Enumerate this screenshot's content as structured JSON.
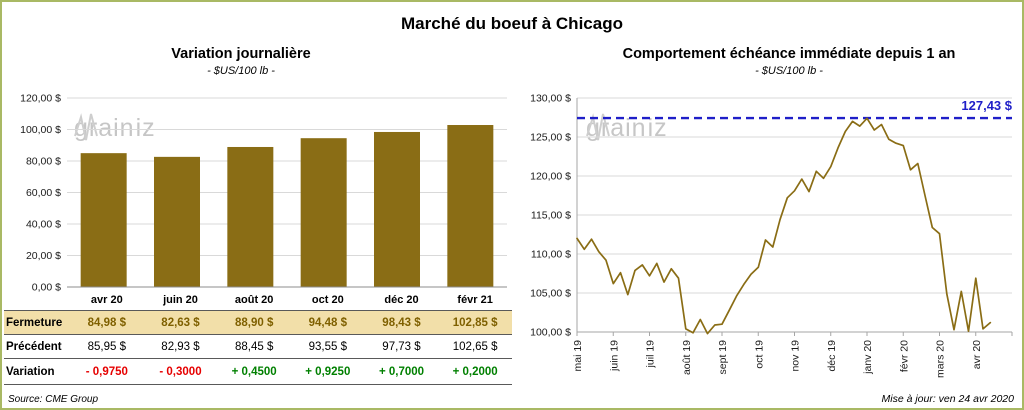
{
  "page": {
    "title": "Marché du boeuf à Chicago",
    "source": "Source: CME Group",
    "updated": "Mise à jour: ven 24 avr 2020",
    "watermark": {
      "pre": "grain",
      "post": "iz"
    }
  },
  "colors": {
    "bar": "#8a6d15",
    "line": "#8a6d15",
    "reference": "#1f1fc8",
    "negative": "#e60000",
    "positive": "#008000",
    "grid": "#d9d9d9",
    "axis": "#a6a6a6"
  },
  "chart_data": [
    {
      "type": "bar",
      "title": "Variation  journalière",
      "subtitle": "- $US/100 lb -",
      "categories": [
        "avr 20",
        "juin 20",
        "août 20",
        "oct 20",
        "déc 20",
        "févr 21"
      ],
      "values": [
        84.98,
        82.63,
        88.9,
        94.48,
        98.43,
        102.85
      ],
      "ylim": [
        0,
        120
      ],
      "ytick_step": 20,
      "ytick_labels": [
        "0,00 $",
        "20,00 $",
        "40,00 $",
        "60,00 $",
        "80,00 $",
        "100,00 $",
        "120,00 $"
      ],
      "table": {
        "rows": [
          {
            "key": "fermeture",
            "label": "Fermeture",
            "values": [
              "84,98  $",
              "82,63  $",
              "88,90  $",
              "94,48  $",
              "98,43  $",
              "102,85  $"
            ]
          },
          {
            "key": "precedent",
            "label": "Précédent",
            "values": [
              "85,95  $",
              "82,93  $",
              "88,45  $",
              "93,55  $",
              "97,73  $",
              "102,65  $"
            ]
          },
          {
            "key": "variation",
            "label": "Variation",
            "values": [
              "- 0,9750",
              "- 0,3000",
              "+ 0,4500",
              "+ 0,9250",
              "+ 0,7000",
              "+ 0,2000"
            ],
            "colors": [
              "neg",
              "neg",
              "pos",
              "pos",
              "pos",
              "pos"
            ]
          }
        ]
      }
    },
    {
      "type": "line",
      "title": "Comportement  échéance  immédiate  depuis 1 an",
      "subtitle": "- $US/100 lb -",
      "x_labels": [
        "mai 19",
        "juin 19",
        "juil 19",
        "août 19",
        "sept 19",
        "oct 19",
        "nov 19",
        "déc 19",
        "janv 20",
        "févr 20",
        "mars 20",
        "avr 20"
      ],
      "values": [
        112.0,
        110.6,
        111.9,
        110.3,
        109.2,
        106.2,
        107.6,
        104.8,
        107.9,
        108.6,
        107.2,
        108.8,
        106.4,
        108.1,
        106.9,
        100.4,
        99.9,
        101.6,
        99.8,
        100.9,
        101.0,
        102.8,
        104.6,
        106.1,
        107.4,
        108.3,
        111.8,
        110.9,
        114.4,
        117.2,
        118.1,
        119.6,
        118.0,
        120.6,
        119.7,
        121.2,
        123.6,
        125.7,
        127.0,
        126.4,
        127.4,
        125.9,
        126.6,
        124.7,
        124.2,
        123.9,
        120.8,
        121.6,
        117.5,
        113.4,
        112.6,
        104.9,
        100.3,
        105.2,
        100.1,
        106.9,
        100.4,
        101.2
      ],
      "ylim": [
        100,
        130
      ],
      "ytick_step": 5,
      "ytick_labels": [
        "100,00 $",
        "105,00 $",
        "110,00 $",
        "115,00 $",
        "120,00 $",
        "125,00 $",
        "130,00 $"
      ],
      "reference_line": {
        "value": 127.43,
        "label": "127,43 $"
      }
    }
  ]
}
